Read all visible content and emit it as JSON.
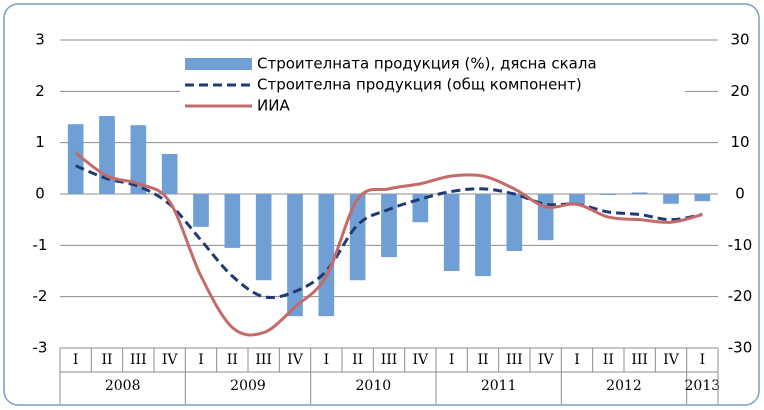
{
  "chart_data": {
    "type": "bar-line",
    "categories": [
      "I",
      "II",
      "III",
      "IV",
      "I",
      "II",
      "III",
      "IV",
      "I",
      "II",
      "III",
      "IV",
      "I",
      "II",
      "III",
      "IV",
      "I",
      "II",
      "III",
      "IV",
      "I"
    ],
    "years": [
      "2008",
      "2009",
      "2010",
      "2011",
      "2012",
      "2013"
    ],
    "series": [
      {
        "name": "Строителната продукция (%), дясна скала",
        "type": "bar",
        "axis": "y2",
        "color": "#6f9fd4",
        "values": [
          13.6,
          15.2,
          13.4,
          7.8,
          -6.4,
          -10.5,
          -16.8,
          -23.8,
          -23.8,
          -16.8,
          -12.3,
          -5.5,
          -15,
          -16,
          -11.1,
          -9,
          -2,
          -0.2,
          0.3,
          -1.9,
          -1.4
        ]
      },
      {
        "name": "Строителна продукция (общ компонент)",
        "type": "line",
        "dash": true,
        "color": "#1f3b73",
        "values": [
          0.55,
          0.3,
          0.15,
          -0.2,
          -0.9,
          -1.6,
          -2.0,
          -1.9,
          -1.5,
          -0.6,
          -0.3,
          -0.1,
          0.05,
          0.1,
          0.0,
          -0.2,
          -0.2,
          -0.35,
          -0.4,
          -0.5,
          -0.4
        ]
      },
      {
        "name": "ИИА",
        "type": "line",
        "dash": false,
        "color": "#c46a68",
        "values": [
          0.8,
          0.35,
          0.2,
          -0.15,
          -1.6,
          -2.6,
          -2.7,
          -2.2,
          -1.6,
          -0.1,
          0.1,
          0.2,
          0.35,
          0.35,
          0.1,
          -0.25,
          -0.2,
          -0.45,
          -0.5,
          -0.55,
          -0.4
        ]
      }
    ],
    "ylim": [
      -3,
      3
    ],
    "yticks": [
      -3,
      -2,
      -1,
      0,
      1,
      2,
      3
    ],
    "y2lim": [
      -30,
      30
    ],
    "y2ticks": [
      -30,
      -20,
      -10,
      0,
      10,
      20,
      30
    ],
    "grid": true
  }
}
